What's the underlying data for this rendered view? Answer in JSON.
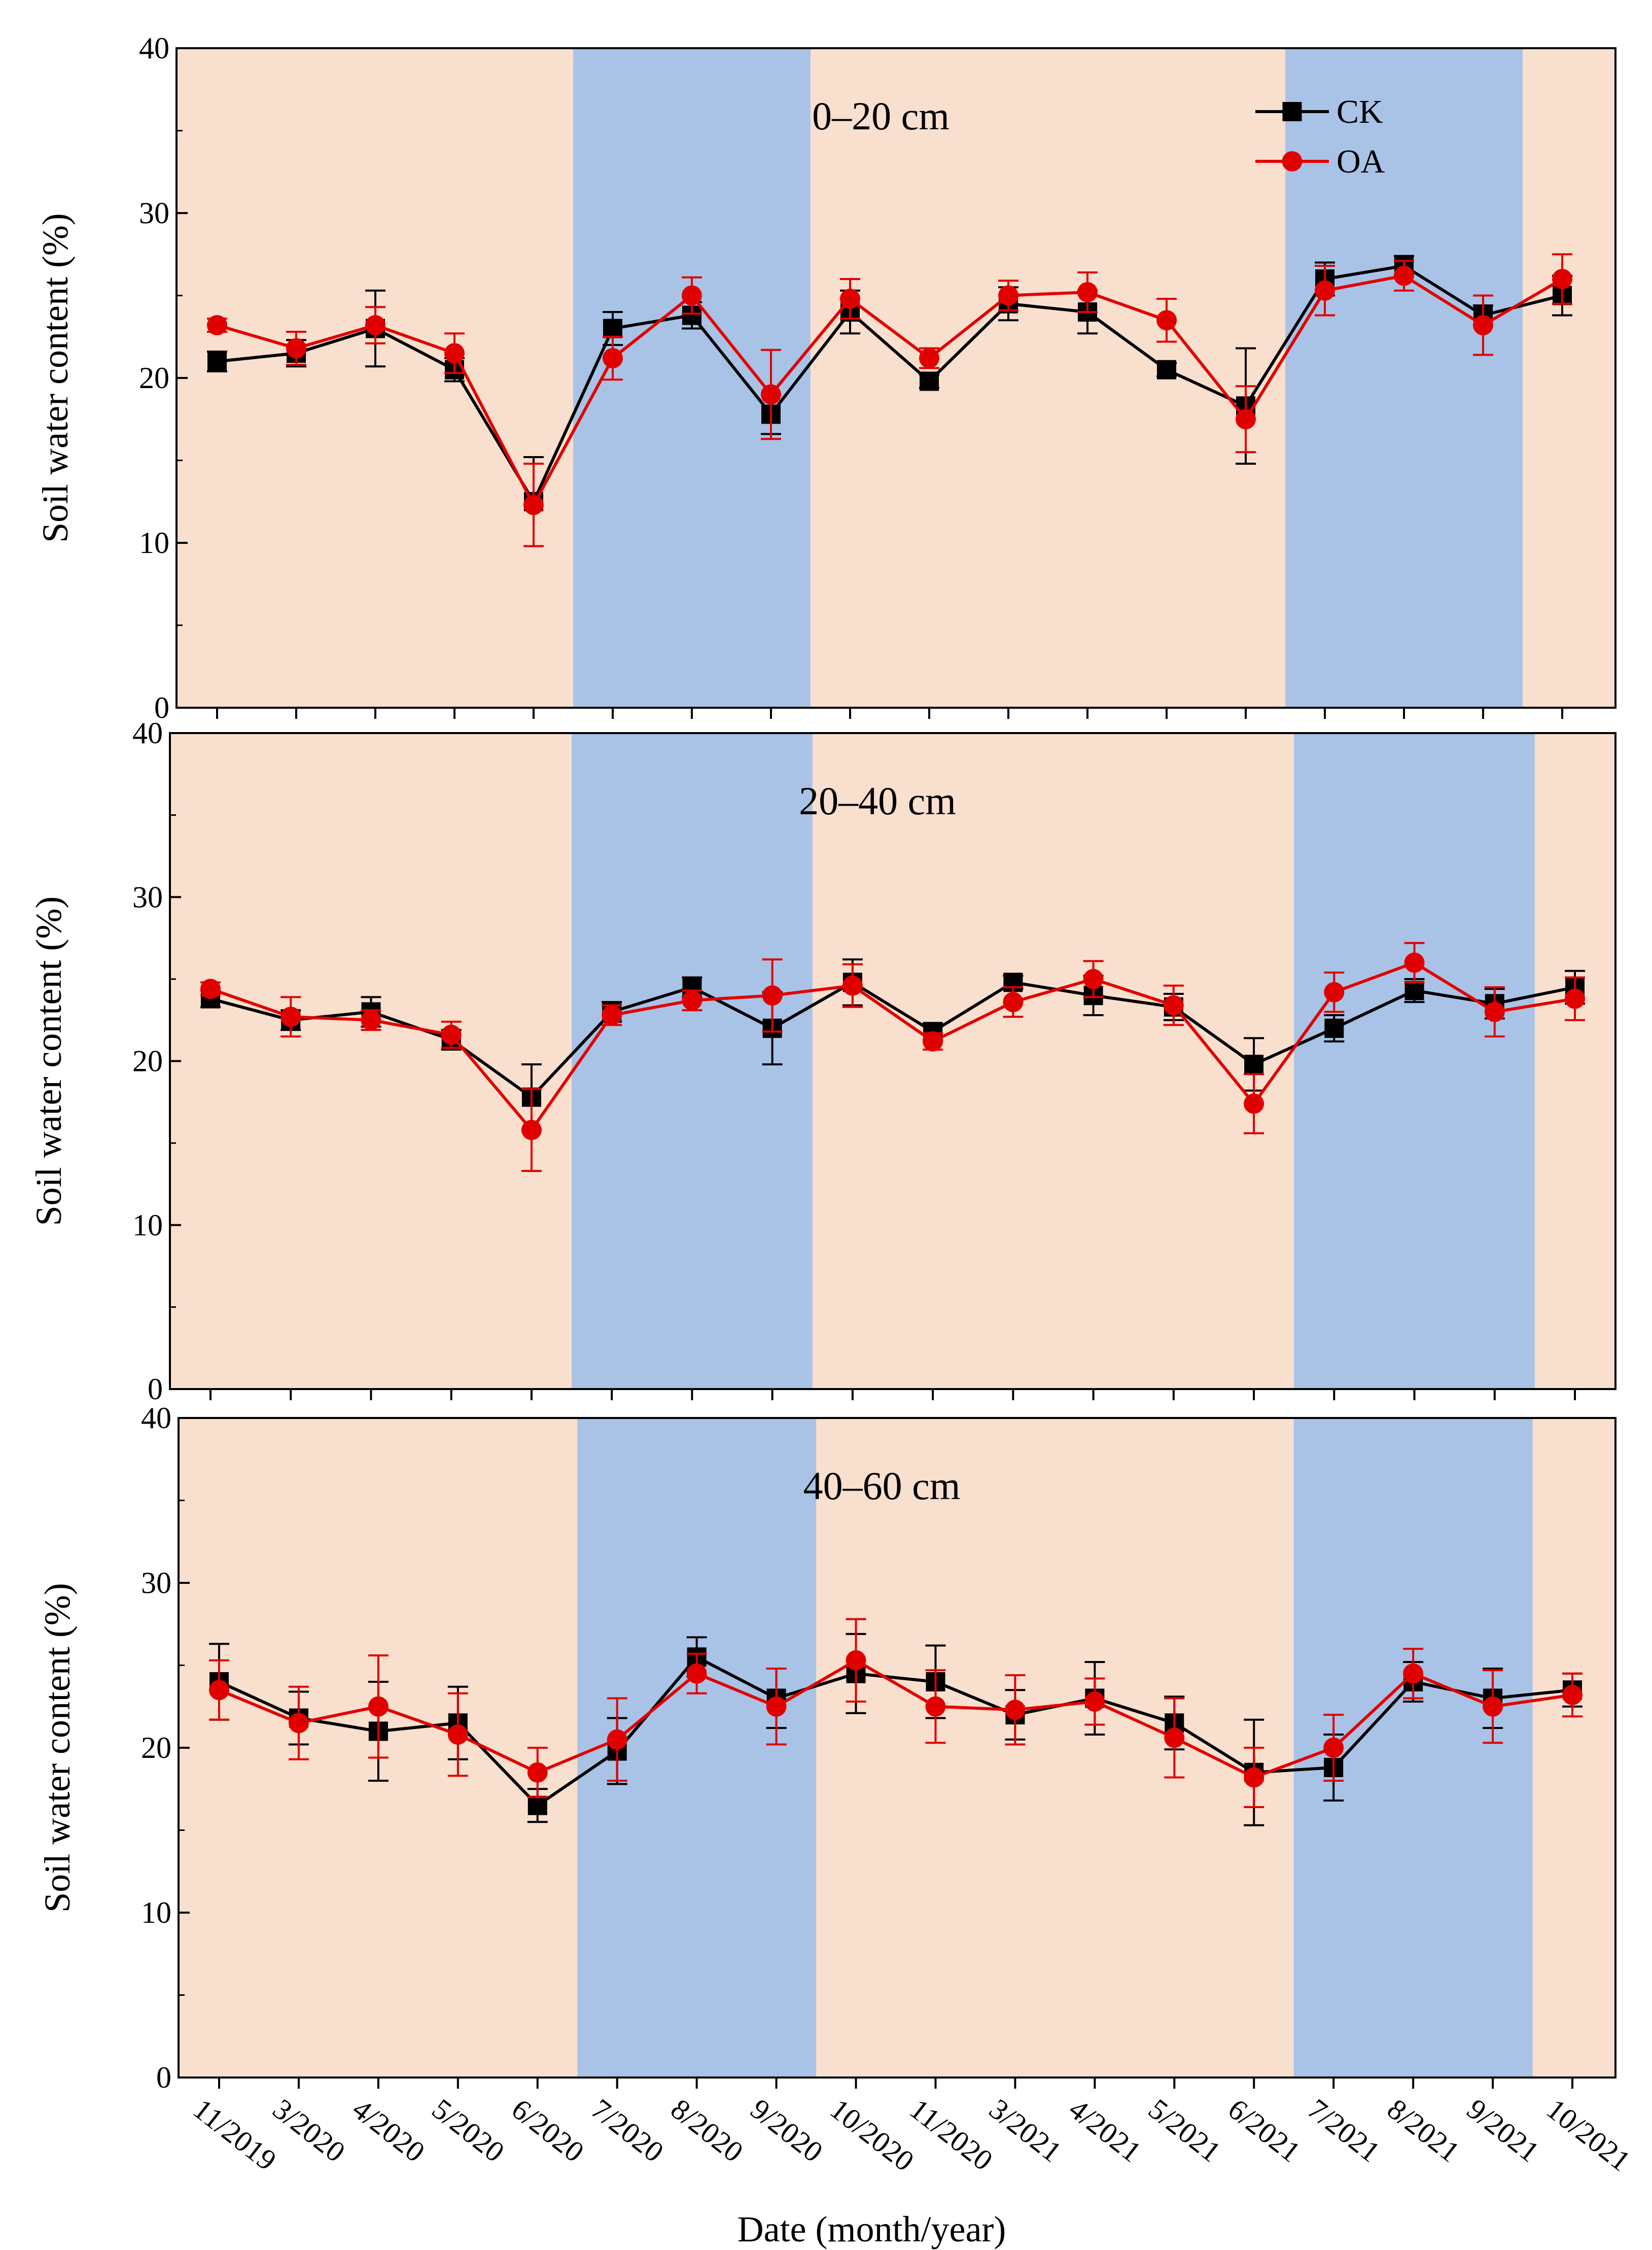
{
  "colors": {
    "background_shade": "#f9dfce",
    "wet_season_shade": "#a9c3e6",
    "ck": "#000000",
    "oa": "#e10000"
  },
  "legend": {
    "ck_label": "CK",
    "oa_label": "OA"
  },
  "chart_data": [
    {
      "type": "line",
      "title": "0–20 cm",
      "xlabel": "Date (month/year)",
      "ylabel": "Soil water content (%)",
      "ylim": [
        0,
        40
      ],
      "yticks": [
        "0",
        "10",
        "20",
        "30",
        "40"
      ],
      "categories": [
        "11/2019",
        "3/2020",
        "4/2020",
        "5/2020",
        "6/2020",
        "7/2020",
        "8/2020",
        "9/2020",
        "10/2020",
        "11/2020",
        "3/2021",
        "4/2021",
        "5/2021",
        "6/2021",
        "7/2021",
        "8/2021",
        "9/2021",
        "10/2021"
      ],
      "shaded_periods": [
        {
          "from_category": "7/2020",
          "to_category": "9/2020"
        },
        {
          "from_category": "7/2021",
          "to_category": "9/2021"
        }
      ],
      "series": [
        {
          "name": "CK",
          "values": [
            21.0,
            21.5,
            23.0,
            20.5,
            12.5,
            23.0,
            23.8,
            17.8,
            24.0,
            19.8,
            24.5,
            24.0,
            20.5,
            18.3,
            26.0,
            26.8,
            23.8,
            25.0
          ],
          "errors": [
            0.6,
            0.8,
            2.3,
            0.7,
            2.7,
            1.0,
            0.8,
            1.2,
            1.3,
            0.4,
            1.0,
            1.3,
            0.4,
            3.5,
            1.0,
            0.6,
            0.6,
            1.2
          ]
        },
        {
          "name": "OA",
          "values": [
            23.2,
            21.8,
            23.2,
            21.5,
            12.3,
            21.2,
            25.0,
            19.0,
            24.8,
            21.2,
            25.0,
            25.2,
            23.5,
            17.5,
            25.3,
            26.2,
            23.2,
            26.0
          ],
          "errors": [
            0.4,
            1.0,
            1.1,
            1.2,
            2.5,
            1.3,
            1.1,
            2.7,
            1.2,
            0.6,
            0.9,
            1.2,
            1.3,
            2.0,
            1.5,
            0.9,
            1.8,
            1.5
          ]
        }
      ]
    },
    {
      "type": "line",
      "title": "20–40 cm",
      "xlabel": "Date (month/year)",
      "ylabel": "Soil water content (%)",
      "ylim": [
        0,
        40
      ],
      "yticks": [
        "0",
        "10",
        "20",
        "30",
        "40"
      ],
      "categories": [
        "11/2019",
        "3/2020",
        "4/2020",
        "5/2020",
        "6/2020",
        "7/2020",
        "8/2020",
        "9/2020",
        "10/2020",
        "11/2020",
        "3/2021",
        "4/2021",
        "5/2021",
        "6/2021",
        "7/2021",
        "8/2021",
        "9/2021",
        "10/2021"
      ],
      "shaded_periods": [
        {
          "from_category": "7/2020",
          "to_category": "9/2020"
        },
        {
          "from_category": "7/2021",
          "to_category": "9/2021"
        }
      ],
      "series": [
        {
          "name": "CK",
          "values": [
            23.8,
            22.5,
            23.0,
            21.3,
            17.8,
            23.0,
            24.5,
            22.0,
            24.8,
            21.8,
            24.8,
            24.0,
            23.3,
            19.8,
            22.0,
            24.3,
            23.5,
            24.5
          ],
          "errors": [
            0.5,
            0.6,
            0.9,
            0.6,
            2.0,
            0.6,
            0.6,
            2.2,
            1.4,
            0.5,
            0.4,
            1.2,
            0.8,
            1.6,
            0.8,
            0.7,
            0.9,
            1.0
          ]
        },
        {
          "name": "OA",
          "values": [
            24.4,
            22.7,
            22.5,
            21.6,
            15.8,
            22.8,
            23.7,
            24.0,
            24.6,
            21.2,
            23.6,
            25.0,
            23.4,
            17.4,
            24.2,
            26.0,
            23.0,
            23.8
          ],
          "errors": [
            0.4,
            1.2,
            0.6,
            0.8,
            2.5,
            0.6,
            0.6,
            2.2,
            1.3,
            0.5,
            0.9,
            1.1,
            1.2,
            1.8,
            1.2,
            1.2,
            1.5,
            1.3
          ]
        }
      ]
    },
    {
      "type": "line",
      "title": "40–60 cm",
      "xlabel": "Date (month/year)",
      "ylabel": "Soil water content (%)",
      "ylim": [
        0,
        40
      ],
      "yticks": [
        "0",
        "10",
        "20",
        "30",
        "40"
      ],
      "categories": [
        "11/2019",
        "3/2020",
        "4/2020",
        "5/2020",
        "6/2020",
        "7/2020",
        "8/2020",
        "9/2020",
        "10/2020",
        "11/2020",
        "3/2021",
        "4/2021",
        "5/2021",
        "6/2021",
        "7/2021",
        "8/2021",
        "9/2021",
        "10/2021"
      ],
      "shaded_periods": [
        {
          "from_category": "7/2020",
          "to_category": "9/2020"
        },
        {
          "from_category": "7/2021",
          "to_category": "9/2021"
        }
      ],
      "series": [
        {
          "name": "CK",
          "values": [
            24.0,
            21.8,
            21.0,
            21.5,
            16.5,
            19.8,
            25.5,
            23.0,
            24.5,
            24.0,
            22.0,
            23.0,
            21.5,
            18.5,
            18.8,
            24.0,
            23.0,
            23.5
          ],
          "errors": [
            2.3,
            1.6,
            3.0,
            2.2,
            1.0,
            2.0,
            1.2,
            1.8,
            2.4,
            2.2,
            1.5,
            2.2,
            1.6,
            3.2,
            2.0,
            1.2,
            1.8,
            1.0
          ]
        },
        {
          "name": "OA",
          "values": [
            23.5,
            21.5,
            22.5,
            20.8,
            18.5,
            20.5,
            24.5,
            22.5,
            25.3,
            22.5,
            22.3,
            22.8,
            20.6,
            18.2,
            20.0,
            24.5,
            22.5,
            23.2
          ],
          "errors": [
            1.8,
            2.2,
            3.1,
            2.5,
            1.5,
            2.5,
            1.2,
            2.3,
            2.5,
            2.2,
            2.1,
            1.4,
            2.4,
            1.8,
            2.0,
            1.5,
            2.2,
            1.3
          ]
        }
      ]
    }
  ]
}
